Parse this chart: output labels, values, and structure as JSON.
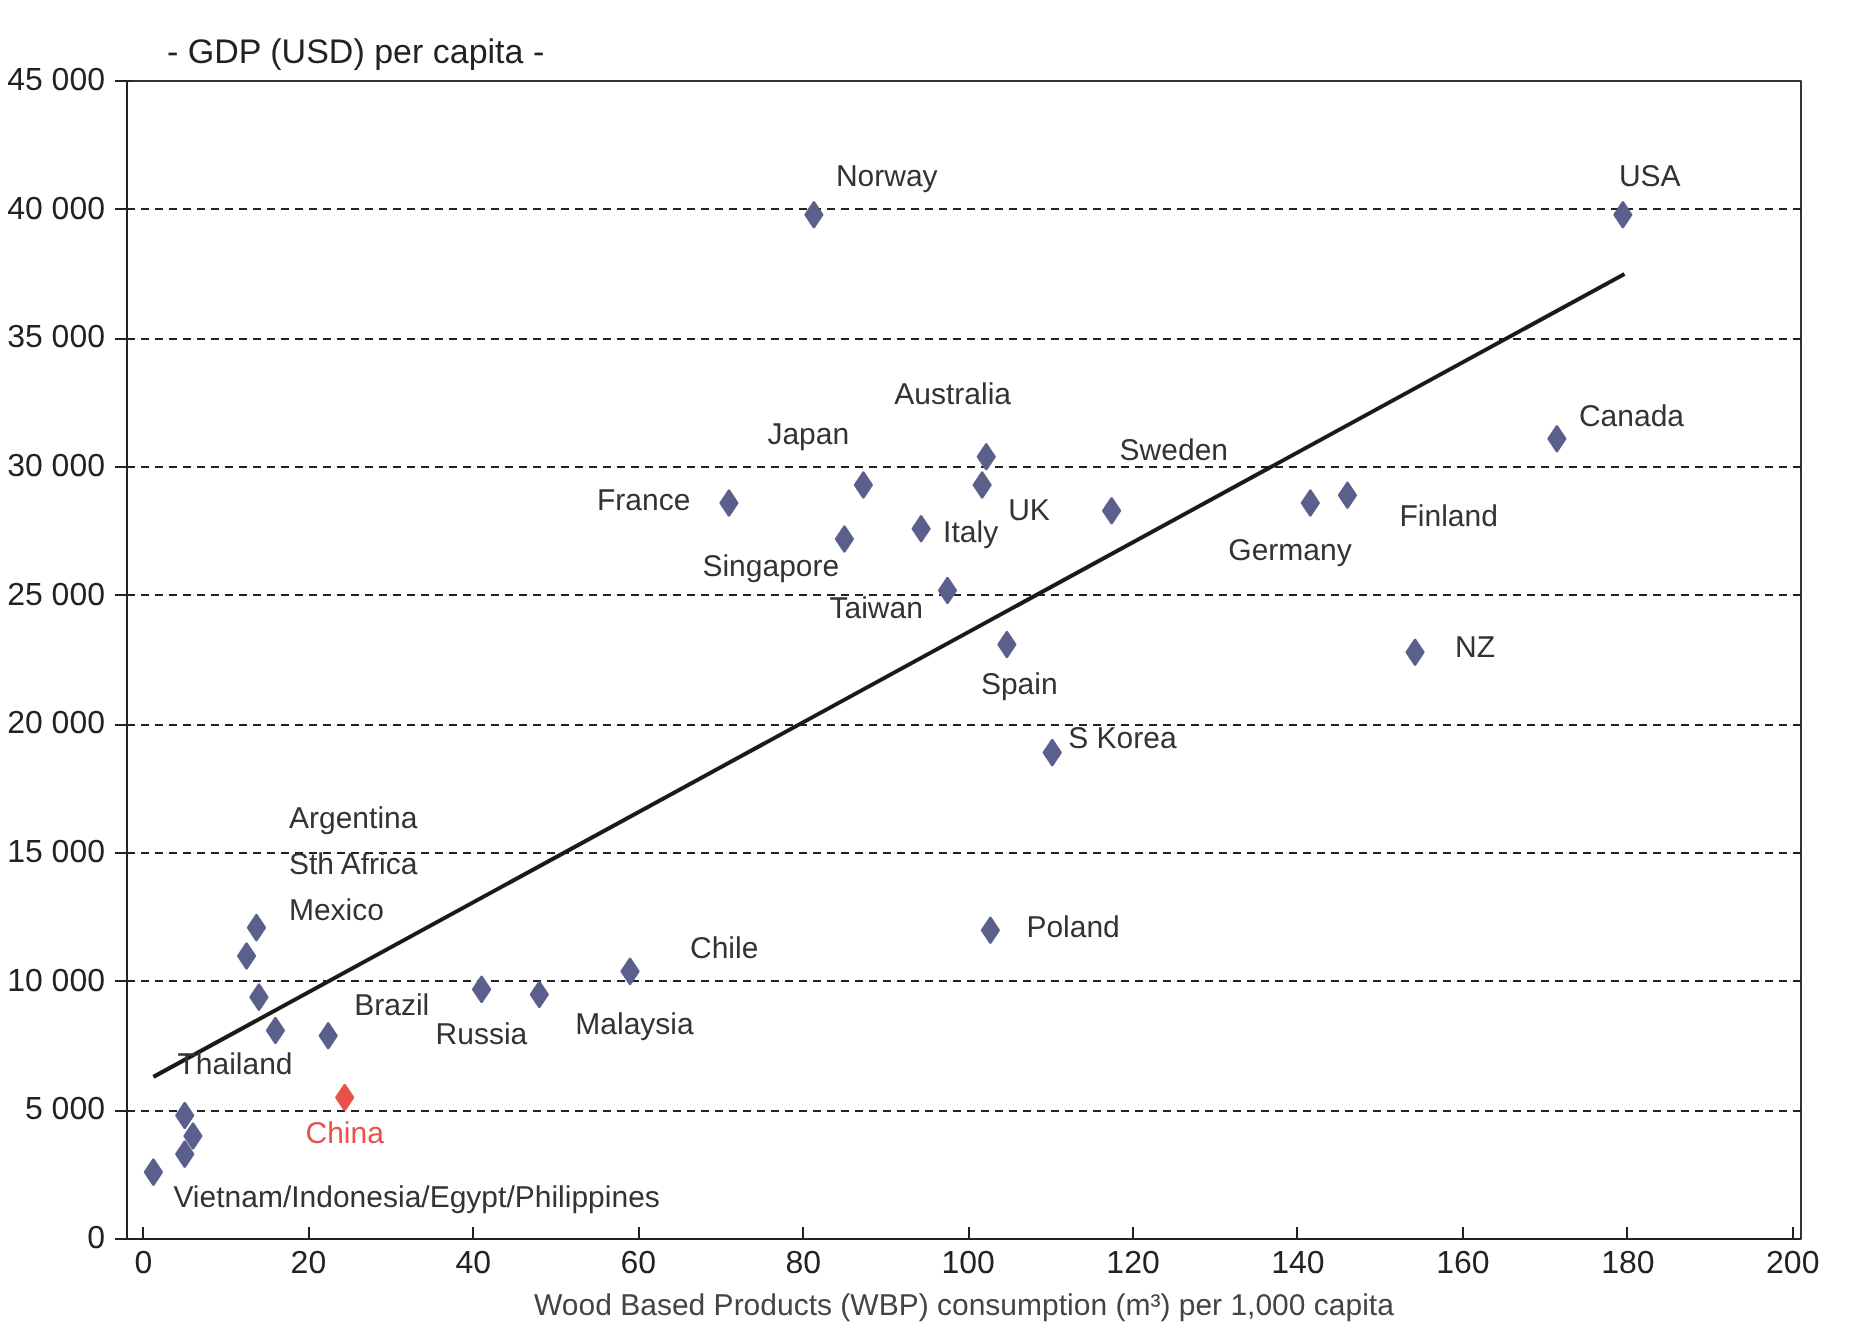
{
  "chart_data": {
    "type": "scatter",
    "ylabel": "- GDP (USD) per capita -",
    "xlabel": "Wood Based Products (WBP) consumption (m³) per 1,000 capita",
    "xlim": [
      -2,
      201
    ],
    "ylim": [
      0,
      45000
    ],
    "xticks": [
      0,
      20,
      40,
      60,
      80,
      100,
      120,
      140,
      160,
      180,
      200
    ],
    "yticks": [
      0,
      {
        "value": 5000,
        "label": "5 000"
      },
      {
        "value": 10000,
        "label": "10 000"
      },
      {
        "value": 15000,
        "label": "15 000"
      },
      {
        "value": 20000,
        "label": "20 000"
      },
      {
        "value": 25000,
        "label": "25 000"
      },
      {
        "value": 30000,
        "label": "30 000"
      },
      {
        "value": 35000,
        "label": "35 000"
      },
      {
        "value": 40000,
        "label": "40 000"
      },
      {
        "value": 45000,
        "label": "45 000"
      }
    ],
    "grid": "y",
    "marker": "diamond",
    "series": [
      {
        "color": "#5a5f8c",
        "x": [
          1.2,
          5,
          6,
          5,
          16,
          14,
          12.5,
          13.7,
          22.4,
          41,
          48,
          59,
          102.7,
          81.3,
          71,
          87.3,
          85,
          94.3,
          102.2,
          101.7,
          117.4,
          97.5,
          104.7,
          110.2,
          179.4,
          171.4,
          141.5,
          146,
          154.2
        ],
        "values": [
          2600,
          4800,
          4000,
          3300,
          8100,
          9400,
          11000,
          12100,
          7900,
          9700,
          9500,
          10400,
          12000,
          39800,
          28600,
          29300,
          27200,
          27600,
          30400,
          29300,
          28300,
          25200,
          23100,
          18900,
          39800,
          31100,
          28600,
          28900,
          22800
        ]
      },
      {
        "name": "China",
        "color": "#e8524a",
        "x": [
          24.4
        ],
        "values": [
          5500
        ]
      },
      {
        "type": "line",
        "marker": "none",
        "color": "#1a1a1a",
        "x": [
          1.2,
          179.6
        ],
        "values": [
          6300,
          37500
        ]
      }
    ],
    "annotations": [
      {
        "text": "Norway",
        "x": 81.3,
        "y": 39800
      },
      {
        "text": "USA",
        "x": 179.4,
        "y": 39800
      },
      {
        "text": "Australia",
        "x": 102.2,
        "y": 30400
      },
      {
        "text": "Japan",
        "x": 87.3,
        "y": 29300
      },
      {
        "text": "Sweden",
        "x": 117.4,
        "y": 28300
      },
      {
        "text": "Canada",
        "x": 171.4,
        "y": 31100
      },
      {
        "text": "France",
        "x": 71,
        "y": 28600
      },
      {
        "text": "Italy",
        "x": 94.3,
        "y": 27600
      },
      {
        "text": "UK",
        "x": 101.7,
        "y": 29300
      },
      {
        "text": "Finland",
        "x": 146,
        "y": 28900
      },
      {
        "text": "Singapore",
        "x": 85,
        "y": 27200
      },
      {
        "text": "Germany",
        "x": 141.5,
        "y": 28600
      },
      {
        "text": "Taiwan",
        "x": 97.5,
        "y": 25200
      },
      {
        "text": "NZ",
        "x": 154.2,
        "y": 22800
      },
      {
        "text": "Spain",
        "x": 104.7,
        "y": 23100
      },
      {
        "text": "S Korea",
        "x": 110.2,
        "y": 18900
      },
      "Argentina",
      "Sth Africa",
      {
        "text": "Mexico",
        "x": 14,
        "y": 9400
      },
      {
        "text": "Chile",
        "x": 59,
        "y": 10400
      },
      {
        "text": "Poland",
        "x": 102.7,
        "y": 12000
      },
      {
        "text": "Brazil",
        "x": 22.4,
        "y": 7900
      },
      {
        "text": "Russia",
        "x": 41,
        "y": 9700
      },
      {
        "text": "Malaysia",
        "x": 48,
        "y": 9500
      },
      {
        "text": "Thailand",
        "x": 16,
        "y": 8100
      },
      {
        "text": "Vietnam/Indonesia/Egypt/Philippines",
        "x": 1.2,
        "y": 2600
      }
    ]
  }
}
